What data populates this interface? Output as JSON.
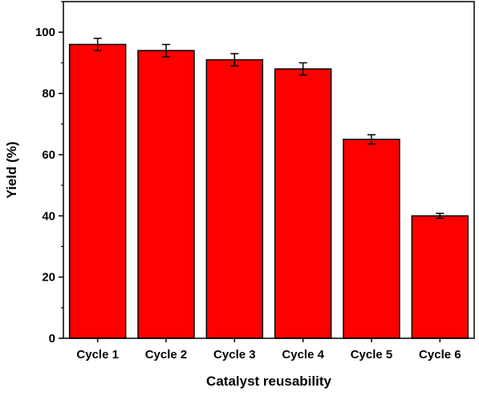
{
  "chart_data": {
    "type": "bar",
    "categories": [
      "Cycle 1",
      "Cycle 2",
      "Cycle 3",
      "Cycle 4",
      "Cycle 5",
      "Cycle 6"
    ],
    "values": [
      96,
      94,
      91,
      88,
      65,
      40
    ],
    "errors": [
      2,
      2,
      2,
      2,
      1.5,
      0.8
    ],
    "xlabel": "Catalyst reusability",
    "ylabel": "Yield (%)",
    "ylim": [
      0,
      110
    ],
    "yticks": [
      0,
      20,
      40,
      60,
      80,
      100
    ],
    "yticks_minor": [
      10,
      30,
      50,
      70,
      90,
      110
    ],
    "bar_color": "#ff0000",
    "edge_color": "#000000",
    "grid": false
  }
}
